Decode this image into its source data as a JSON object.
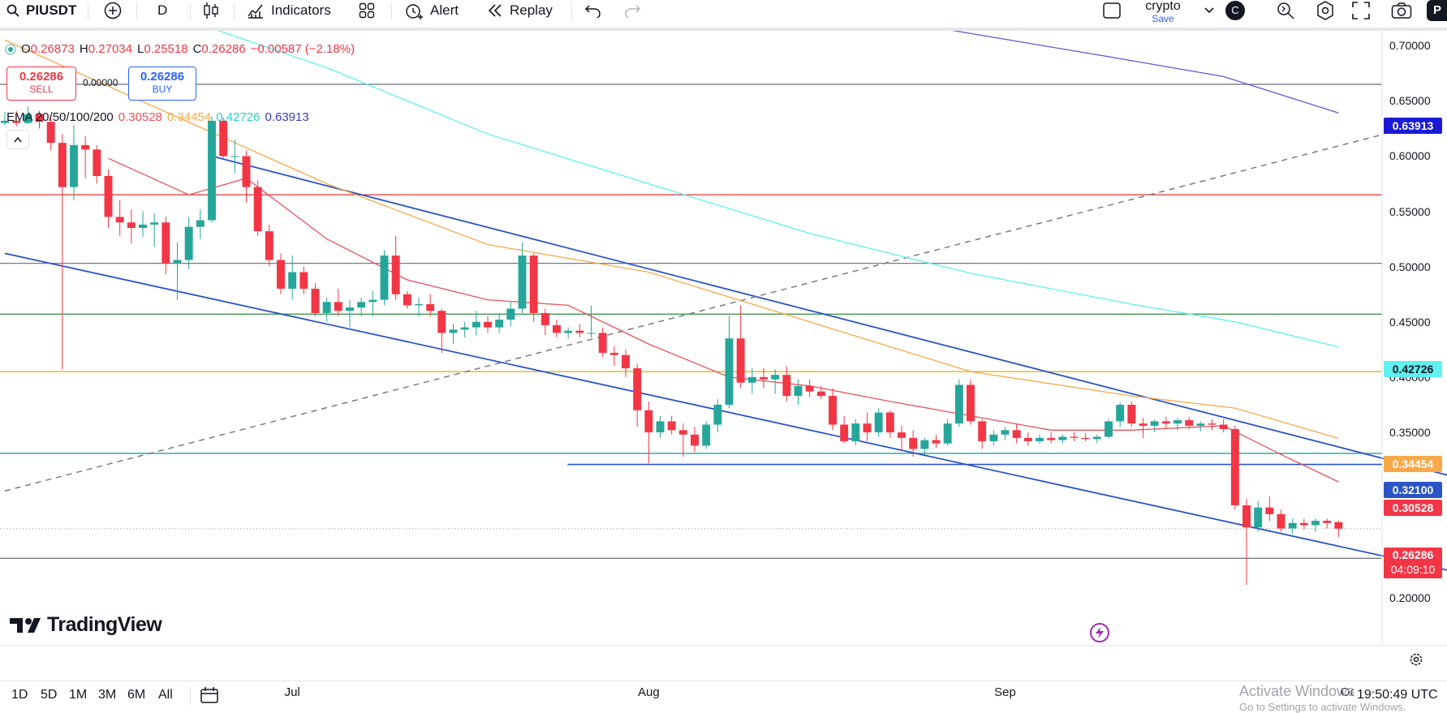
{
  "toolbar": {
    "symbol": "PIUSDT",
    "interval": "D",
    "indicators_label": "Indicators",
    "alert_label": "Alert",
    "replay_label": "Replay",
    "layout_name": "crypto",
    "layout_save": "Save",
    "avatar_letter": "C",
    "publish_letter": "P"
  },
  "legend": {
    "ohlc": {
      "o_label": "O",
      "o": "0.26873",
      "h_label": "H",
      "h": "0.27034",
      "l_label": "L",
      "l": "0.25518",
      "c_label": "C",
      "c": "0.26286",
      "change": "−0.00587 (−2.18%)"
    },
    "sell_price": "0.26286",
    "sell_label": "SELL",
    "spread": "0.00000",
    "buy_price": "0.26286",
    "buy_label": "BUY",
    "ema_label": "EMA 20/50/100/200",
    "ema20": "0.30528",
    "ema50": "0.34454",
    "ema100": "0.42726",
    "ema200": "0.63913"
  },
  "price_tags": {
    "ema200": "0.63913",
    "ema100": "0.42726",
    "ema50": "0.34454",
    "level": "0.32100",
    "ema20": "0.30528",
    "last": "0.26286",
    "countdown": "04:09:10"
  },
  "axis": {
    "y_ticks": [
      "0.70000",
      "0.65000",
      "0.60000",
      "0.55000",
      "0.50000",
      "0.45000",
      "0.40000",
      "0.35000",
      "0.30000",
      "0.20000"
    ],
    "x_ticks": [
      "Jul",
      "Aug",
      "Sep",
      "Oct"
    ]
  },
  "branding": {
    "logo_text": "TradingView"
  },
  "bottom": {
    "ranges": [
      "1D",
      "5D",
      "1M",
      "3M",
      "6M",
      "All"
    ],
    "clock": "19:50:49 UTC",
    "watermark_line1": "Activate Windows",
    "watermark_line2": "Go to Settings to activate Windows."
  },
  "colors": {
    "up": "#26a69a",
    "down": "#f23645",
    "ema20": "#e5535b",
    "ema50": "#f7a94a",
    "ema100": "#5ff0f0",
    "ema200": "#5b5bd6",
    "trendline": "#2b54c7"
  },
  "chart_data": {
    "type": "candlestick",
    "symbol": "PIUSDT",
    "interval": "D",
    "x_range": [
      "2025-06-06",
      "2025-10-04"
    ],
    "ylim": [
      0.19,
      0.72
    ],
    "ohlc_note": "o,h,l,c per day",
    "candles": [
      [
        "2025-06-06",
        0.63,
        0.64,
        0.628,
        0.632
      ],
      [
        "2025-06-07",
        0.632,
        0.641,
        0.627,
        0.63
      ],
      [
        "2025-06-08",
        0.63,
        0.645,
        0.629,
        0.638
      ],
      [
        "2025-06-09",
        0.638,
        0.641,
        0.625,
        0.631
      ],
      [
        "2025-06-10",
        0.631,
        0.636,
        0.605,
        0.612
      ],
      [
        "2025-06-11",
        0.612,
        0.62,
        0.407,
        0.572
      ],
      [
        "2025-06-12",
        0.572,
        0.628,
        0.56,
        0.61
      ],
      [
        "2025-06-13",
        0.61,
        0.618,
        0.58,
        0.606
      ],
      [
        "2025-06-14",
        0.606,
        0.61,
        0.575,
        0.582
      ],
      [
        "2025-06-15",
        0.582,
        0.588,
        0.535,
        0.545
      ],
      [
        "2025-06-16",
        0.545,
        0.56,
        0.528,
        0.54
      ],
      [
        "2025-06-17",
        0.54,
        0.552,
        0.521,
        0.535
      ],
      [
        "2025-06-18",
        0.535,
        0.55,
        0.527,
        0.538
      ],
      [
        "2025-06-19",
        0.538,
        0.548,
        0.518,
        0.54
      ],
      [
        "2025-06-20",
        0.54,
        0.545,
        0.493,
        0.503
      ],
      [
        "2025-06-21",
        0.503,
        0.522,
        0.47,
        0.506
      ],
      [
        "2025-06-22",
        0.506,
        0.545,
        0.498,
        0.536
      ],
      [
        "2025-06-23",
        0.536,
        0.552,
        0.525,
        0.542
      ],
      [
        "2025-06-24",
        0.542,
        0.636,
        0.54,
        0.632
      ],
      [
        "2025-06-25",
        0.632,
        0.635,
        0.598,
        0.6
      ],
      [
        "2025-06-26",
        0.6,
        0.615,
        0.585,
        0.6
      ],
      [
        "2025-06-27",
        0.6,
        0.605,
        0.558,
        0.572
      ],
      [
        "2025-06-28",
        0.572,
        0.578,
        0.528,
        0.532
      ],
      [
        "2025-06-29",
        0.532,
        0.538,
        0.5,
        0.506
      ],
      [
        "2025-06-30",
        0.506,
        0.512,
        0.475,
        0.48
      ],
      [
        "2025-07-01",
        0.48,
        0.51,
        0.47,
        0.495
      ],
      [
        "2025-07-02",
        0.495,
        0.5,
        0.475,
        0.48
      ],
      [
        "2025-07-03",
        0.48,
        0.485,
        0.455,
        0.458
      ],
      [
        "2025-07-04",
        0.458,
        0.472,
        0.45,
        0.468
      ],
      [
        "2025-07-05",
        0.468,
        0.48,
        0.455,
        0.46
      ],
      [
        "2025-07-06",
        0.46,
        0.47,
        0.445,
        0.463
      ],
      [
        "2025-07-07",
        0.463,
        0.472,
        0.455,
        0.468
      ],
      [
        "2025-07-08",
        0.468,
        0.478,
        0.455,
        0.47
      ],
      [
        "2025-07-09",
        0.47,
        0.515,
        0.465,
        0.51
      ],
      [
        "2025-07-10",
        0.51,
        0.528,
        0.47,
        0.475
      ],
      [
        "2025-07-11",
        0.475,
        0.478,
        0.462,
        0.465
      ],
      [
        "2025-07-12",
        0.465,
        0.472,
        0.455,
        0.466
      ],
      [
        "2025-07-13",
        0.466,
        0.475,
        0.455,
        0.46
      ],
      [
        "2025-07-14",
        0.46,
        0.462,
        0.422,
        0.44
      ],
      [
        "2025-07-15",
        0.44,
        0.448,
        0.43,
        0.443
      ],
      [
        "2025-07-16",
        0.443,
        0.45,
        0.436,
        0.445
      ],
      [
        "2025-07-17",
        0.445,
        0.46,
        0.438,
        0.45
      ],
      [
        "2025-07-18",
        0.45,
        0.455,
        0.44,
        0.445
      ],
      [
        "2025-07-19",
        0.445,
        0.458,
        0.44,
        0.452
      ],
      [
        "2025-07-20",
        0.452,
        0.468,
        0.446,
        0.462
      ],
      [
        "2025-07-21",
        0.462,
        0.522,
        0.458,
        0.51
      ],
      [
        "2025-07-22",
        0.51,
        0.512,
        0.45,
        0.458
      ],
      [
        "2025-07-23",
        0.458,
        0.462,
        0.438,
        0.447
      ],
      [
        "2025-07-24",
        0.447,
        0.452,
        0.436,
        0.44
      ],
      [
        "2025-07-25",
        0.44,
        0.445,
        0.435,
        0.442
      ],
      [
        "2025-07-26",
        0.442,
        0.448,
        0.436,
        0.44
      ],
      [
        "2025-07-27",
        0.44,
        0.465,
        0.436,
        0.44
      ],
      [
        "2025-07-28",
        0.44,
        0.445,
        0.418,
        0.422
      ],
      [
        "2025-07-29",
        0.422,
        0.428,
        0.41,
        0.42
      ],
      [
        "2025-07-30",
        0.42,
        0.425,
        0.4,
        0.408
      ],
      [
        "2025-07-31",
        0.408,
        0.412,
        0.355,
        0.37
      ],
      [
        "2025-08-01",
        0.37,
        0.378,
        0.322,
        0.35
      ],
      [
        "2025-08-02",
        0.35,
        0.365,
        0.345,
        0.36
      ],
      [
        "2025-08-03",
        0.36,
        0.365,
        0.348,
        0.352
      ],
      [
        "2025-08-04",
        0.352,
        0.358,
        0.328,
        0.348
      ],
      [
        "2025-08-05",
        0.348,
        0.355,
        0.332,
        0.338
      ],
      [
        "2025-08-06",
        0.338,
        0.36,
        0.335,
        0.357
      ],
      [
        "2025-08-07",
        0.357,
        0.38,
        0.35,
        0.375
      ],
      [
        "2025-08-08",
        0.375,
        0.455,
        0.372,
        0.435
      ],
      [
        "2025-08-09",
        0.435,
        0.465,
        0.39,
        0.395
      ],
      [
        "2025-08-10",
        0.395,
        0.408,
        0.385,
        0.4
      ],
      [
        "2025-08-11",
        0.4,
        0.408,
        0.39,
        0.398
      ],
      [
        "2025-08-12",
        0.398,
        0.407,
        0.385,
        0.402
      ],
      [
        "2025-08-13",
        0.402,
        0.41,
        0.378,
        0.383
      ],
      [
        "2025-08-14",
        0.383,
        0.398,
        0.375,
        0.392
      ],
      [
        "2025-08-15",
        0.392,
        0.398,
        0.382,
        0.387
      ],
      [
        "2025-08-16",
        0.387,
        0.392,
        0.38,
        0.383
      ],
      [
        "2025-08-17",
        0.383,
        0.39,
        0.352,
        0.357
      ],
      [
        "2025-08-18",
        0.357,
        0.365,
        0.34,
        0.342
      ],
      [
        "2025-08-19",
        0.342,
        0.362,
        0.338,
        0.358
      ],
      [
        "2025-08-20",
        0.358,
        0.368,
        0.342,
        0.35
      ],
      [
        "2025-08-21",
        0.35,
        0.372,
        0.346,
        0.368
      ],
      [
        "2025-08-22",
        0.368,
        0.37,
        0.345,
        0.35
      ],
      [
        "2025-08-23",
        0.35,
        0.356,
        0.333,
        0.345
      ],
      [
        "2025-08-24",
        0.345,
        0.352,
        0.328,
        0.335
      ],
      [
        "2025-08-25",
        0.335,
        0.345,
        0.33,
        0.343
      ],
      [
        "2025-08-26",
        0.343,
        0.348,
        0.336,
        0.34
      ],
      [
        "2025-08-27",
        0.34,
        0.362,
        0.338,
        0.358
      ],
      [
        "2025-08-28",
        0.358,
        0.398,
        0.355,
        0.393
      ],
      [
        "2025-08-29",
        0.393,
        0.398,
        0.357,
        0.36
      ],
      [
        "2025-08-30",
        0.36,
        0.362,
        0.335,
        0.342
      ],
      [
        "2025-08-31",
        0.342,
        0.352,
        0.338,
        0.348
      ],
      [
        "2025-09-01",
        0.348,
        0.355,
        0.343,
        0.352
      ],
      [
        "2025-09-02",
        0.352,
        0.358,
        0.34,
        0.345
      ],
      [
        "2025-09-03",
        0.345,
        0.35,
        0.338,
        0.342
      ],
      [
        "2025-09-04",
        0.342,
        0.348,
        0.34,
        0.345
      ],
      [
        "2025-09-05",
        0.345,
        0.35,
        0.34,
        0.343
      ],
      [
        "2025-09-06",
        0.343,
        0.348,
        0.34,
        0.346
      ],
      [
        "2025-09-07",
        0.346,
        0.35,
        0.342,
        0.345
      ],
      [
        "2025-09-08",
        0.345,
        0.349,
        0.342,
        0.344
      ],
      [
        "2025-09-09",
        0.344,
        0.348,
        0.34,
        0.346
      ],
      [
        "2025-09-10",
        0.346,
        0.362,
        0.344,
        0.36
      ],
      [
        "2025-09-11",
        0.36,
        0.377,
        0.355,
        0.375
      ],
      [
        "2025-09-12",
        0.375,
        0.378,
        0.355,
        0.358
      ],
      [
        "2025-09-13",
        0.358,
        0.363,
        0.345,
        0.356
      ],
      [
        "2025-09-14",
        0.356,
        0.362,
        0.35,
        0.36
      ],
      [
        "2025-09-15",
        0.36,
        0.364,
        0.354,
        0.358
      ],
      [
        "2025-09-16",
        0.358,
        0.363,
        0.352,
        0.361
      ],
      [
        "2025-09-17",
        0.361,
        0.364,
        0.353,
        0.356
      ],
      [
        "2025-09-18",
        0.356,
        0.36,
        0.351,
        0.358
      ],
      [
        "2025-09-19",
        0.358,
        0.362,
        0.352,
        0.357
      ],
      [
        "2025-09-20",
        0.357,
        0.362,
        0.35,
        0.353
      ],
      [
        "2025-09-21",
        0.353,
        0.356,
        0.28,
        0.284
      ],
      [
        "2025-09-22",
        0.284,
        0.29,
        0.212,
        0.264
      ],
      [
        "2025-09-23",
        0.264,
        0.288,
        0.26,
        0.282
      ],
      [
        "2025-09-24",
        0.282,
        0.292,
        0.27,
        0.276
      ],
      [
        "2025-09-25",
        0.276,
        0.28,
        0.26,
        0.263
      ],
      [
        "2025-09-26",
        0.263,
        0.272,
        0.258,
        0.268
      ],
      [
        "2025-09-27",
        0.268,
        0.272,
        0.262,
        0.266
      ],
      [
        "2025-09-28",
        0.266,
        0.272,
        0.26,
        0.27
      ],
      [
        "2025-09-29",
        0.27,
        0.272,
        0.263,
        0.268
      ],
      [
        "2025-09-30",
        0.26873,
        0.27034,
        0.25518,
        0.26286
      ]
    ],
    "ema": {
      "ema20": [
        [
          "2025-06-15",
          0.598
        ],
        [
          "2025-06-22",
          0.565
        ],
        [
          "2025-06-27",
          0.58
        ],
        [
          "2025-07-04",
          0.525
        ],
        [
          "2025-07-11",
          0.488
        ],
        [
          "2025-07-18",
          0.47
        ],
        [
          "2025-07-25",
          0.465
        ],
        [
          "2025-08-01",
          0.43
        ],
        [
          "2025-08-08",
          0.4
        ],
        [
          "2025-08-15",
          0.392
        ],
        [
          "2025-08-22",
          0.378
        ],
        [
          "2025-08-29",
          0.365
        ],
        [
          "2025-09-05",
          0.352
        ],
        [
          "2025-09-12",
          0.352
        ],
        [
          "2025-09-20",
          0.356
        ],
        [
          "2025-09-25",
          0.33
        ],
        [
          "2025-09-30",
          0.30528
        ]
      ],
      "ema50": [
        [
          "2025-06-06",
          0.705
        ],
        [
          "2025-06-20",
          0.64
        ],
        [
          "2025-07-04",
          0.575
        ],
        [
          "2025-07-18",
          0.52
        ],
        [
          "2025-08-01",
          0.495
        ],
        [
          "2025-08-15",
          0.45
        ],
        [
          "2025-08-29",
          0.405
        ],
        [
          "2025-09-12",
          0.383
        ],
        [
          "2025-09-21",
          0.372
        ],
        [
          "2025-09-30",
          0.34454
        ]
      ],
      "ema100": [
        [
          "2025-06-20",
          0.73
        ],
        [
          "2025-07-04",
          0.68
        ],
        [
          "2025-07-18",
          0.62
        ],
        [
          "2025-08-01",
          0.575
        ],
        [
          "2025-08-15",
          0.53
        ],
        [
          "2025-08-29",
          0.494
        ],
        [
          "2025-09-12",
          0.466
        ],
        [
          "2025-09-21",
          0.45
        ],
        [
          "2025-09-30",
          0.42726
        ]
      ],
      "ema200": [
        [
          "2025-08-25",
          0.718
        ],
        [
          "2025-09-10",
          0.69
        ],
        [
          "2025-09-20",
          0.672
        ],
        [
          "2025-09-30",
          0.63913
        ]
      ]
    },
    "horizontal_levels": [
      {
        "price": 0.665,
        "color": "#787b86"
      },
      {
        "price": 0.565,
        "color": "#e03131"
      },
      {
        "price": 0.503,
        "color": "#787b86"
      },
      {
        "price": 0.457,
        "color": "#2e8b3a"
      },
      {
        "price": 0.405,
        "color": "#d4b20a"
      },
      {
        "price": 0.331,
        "color": "#1fa3a3"
      },
      {
        "price": 0.236,
        "color": "#787b86"
      }
    ],
    "segment_levels": [
      {
        "price": 0.321,
        "from": "2025-08-01",
        "to": "2025-10-04",
        "color": "#2b54c7"
      }
    ],
    "trendlines": [
      {
        "from": [
          "2025-06-06",
          0.512
        ],
        "to": [
          "2025-10-14",
          0.215
        ],
        "color": "#2b54c7",
        "dash": false
      },
      {
        "from": [
          "2025-06-24",
          0.6
        ],
        "to": [
          "2025-10-23",
          0.275
        ],
        "color": "#2b54c7",
        "dash": false
      },
      {
        "from": [
          "2025-06-06",
          0.297
        ],
        "to": [
          "2025-10-04",
          0.62
        ],
        "color": "#787b86",
        "dash": true
      }
    ],
    "last_price": 0.26286
  }
}
